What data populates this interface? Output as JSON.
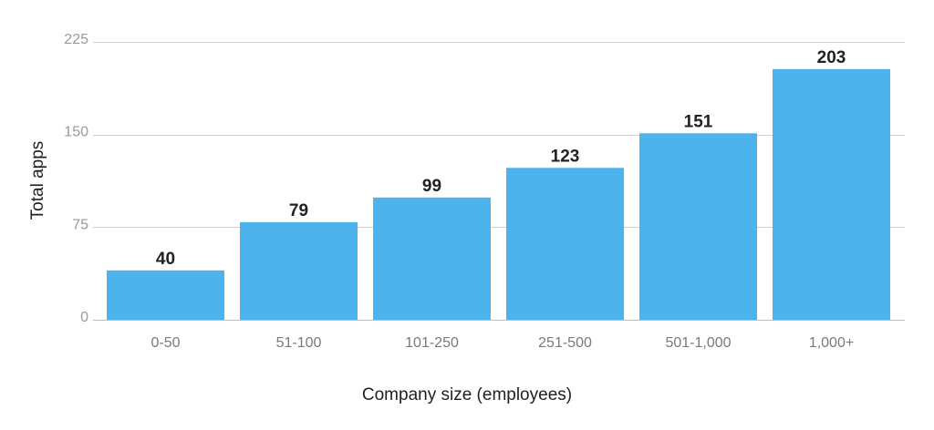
{
  "chart_data": {
    "type": "bar",
    "title": "",
    "xlabel": "Company size (employees)",
    "ylabel": "Total apps",
    "categories": [
      "0-50",
      "51-100",
      "101-250",
      "251-500",
      "501-1,000",
      "1,000+"
    ],
    "values": [
      40,
      79,
      99,
      123,
      151,
      203
    ],
    "value_labels": [
      "40",
      "79",
      "99",
      "123",
      "151",
      "203"
    ],
    "ylim": [
      0,
      225
    ],
    "yticks": [
      0,
      75,
      150,
      225
    ],
    "ytick_labels": [
      "0",
      "75",
      "150",
      "225"
    ],
    "grid": true,
    "legend": "none",
    "bar_color": "#4db3ec"
  }
}
